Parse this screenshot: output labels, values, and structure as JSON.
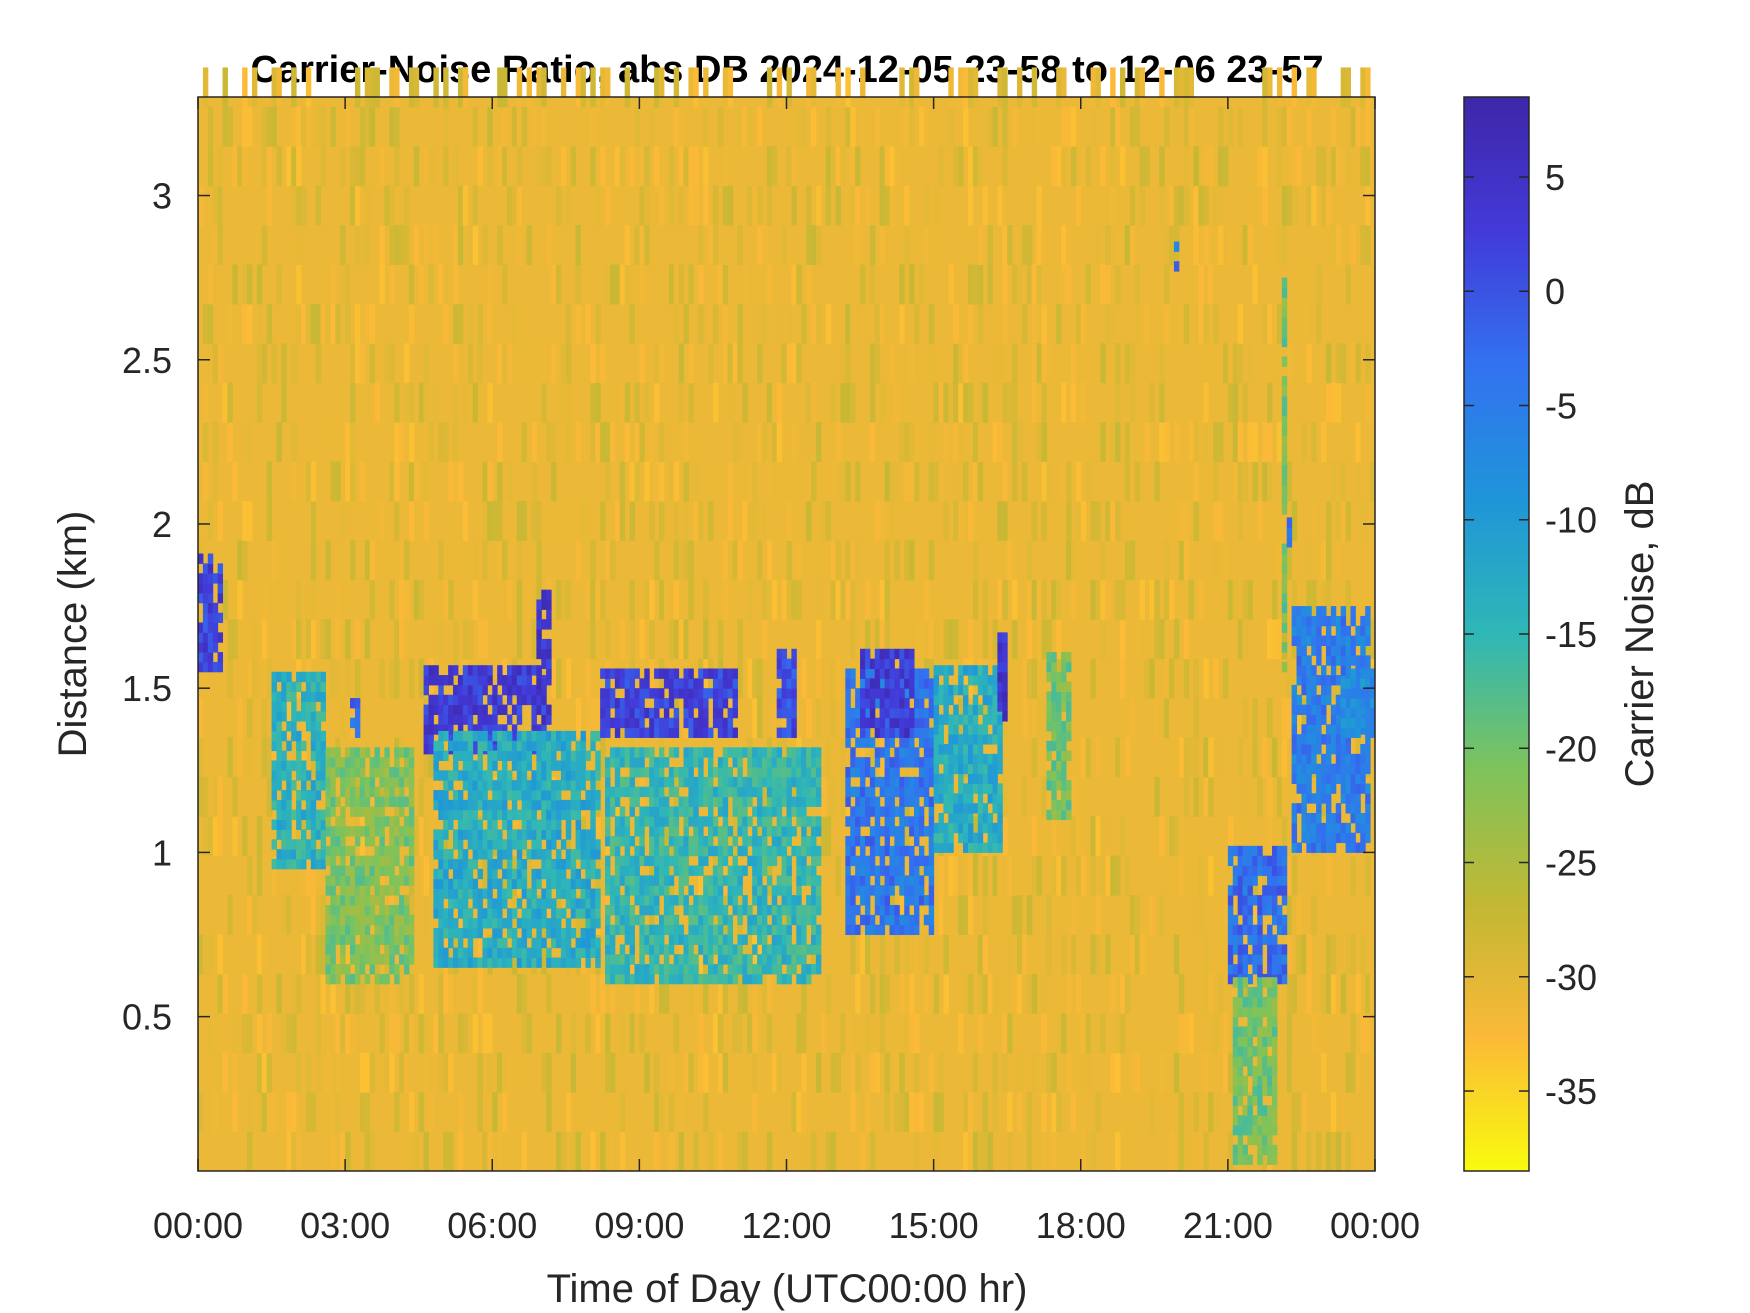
{
  "chart_data": {
    "type": "heatmap",
    "title": "Carrier-Noise Ratio, abs DB 2024-12-05 23-58 to 12-06 23-57",
    "xlabel": "Time of Day (UTC00:00 hr)",
    "ylabel": "Distance (km)",
    "colorbar_label": "Carrier Noise, dB",
    "x_range_hours": [
      0,
      24
    ],
    "y_range_km": [
      0.03,
      3.3
    ],
    "color_range_db": [
      -38.5,
      8.5
    ],
    "x_ticks": [
      {
        "value": 0,
        "label": "00:00"
      },
      {
        "value": 3,
        "label": "03:00"
      },
      {
        "value": 6,
        "label": "06:00"
      },
      {
        "value": 9,
        "label": "09:00"
      },
      {
        "value": 12,
        "label": "12:00"
      },
      {
        "value": 15,
        "label": "15:00"
      },
      {
        "value": 18,
        "label": "18:00"
      },
      {
        "value": 21,
        "label": "21:00"
      },
      {
        "value": 24,
        "label": "00:00"
      }
    ],
    "y_ticks": [
      {
        "value": 0.5,
        "label": "0.5"
      },
      {
        "value": 1,
        "label": "1"
      },
      {
        "value": 1.5,
        "label": "1.5"
      },
      {
        "value": 2,
        "label": "2"
      },
      {
        "value": 2.5,
        "label": "2.5"
      },
      {
        "value": 3,
        "label": "3"
      }
    ],
    "colorbar_ticks": [
      {
        "value": 5,
        "label": "5"
      },
      {
        "value": 0,
        "label": "0"
      },
      {
        "value": -5,
        "label": "-5"
      },
      {
        "value": -10,
        "label": "-10"
      },
      {
        "value": -15,
        "label": "-15"
      },
      {
        "value": -20,
        "label": "-20"
      },
      {
        "value": -25,
        "label": "-25"
      },
      {
        "value": -30,
        "label": "-30"
      },
      {
        "value": -35,
        "label": "-35"
      }
    ],
    "background_db": -31,
    "colormap": [
      "#f9fb0e",
      "#fbb938",
      "#c1b834",
      "#7dc35b",
      "#2fb7b6",
      "#1f95d9",
      "#3272f0",
      "#423ad8",
      "#3e26a8"
    ],
    "features": [
      {
        "t0": 0.0,
        "t1": 0.45,
        "d0": 1.55,
        "d1": 1.9,
        "db": 2
      },
      {
        "t0": 1.5,
        "t1": 2.6,
        "d0": 0.95,
        "d1": 1.55,
        "db": -14
      },
      {
        "t0": 2.6,
        "t1": 4.4,
        "d0": 0.6,
        "d1": 1.3,
        "db": -21
      },
      {
        "t0": 3.1,
        "t1": 3.3,
        "d0": 1.35,
        "d1": 1.45,
        "db": -3
      },
      {
        "t0": 4.6,
        "t1": 7.2,
        "d0": 1.3,
        "d1": 1.55,
        "db": 3
      },
      {
        "t0": 4.8,
        "t1": 8.2,
        "d0": 0.65,
        "d1": 1.35,
        "db": -13
      },
      {
        "t0": 6.9,
        "t1": 7.2,
        "d0": 1.5,
        "d1": 1.8,
        "db": 4
      },
      {
        "t0": 8.2,
        "t1": 11.0,
        "d0": 1.35,
        "d1": 1.55,
        "db": 2
      },
      {
        "t0": 8.3,
        "t1": 12.7,
        "d0": 0.6,
        "d1": 1.3,
        "db": -15
      },
      {
        "t0": 11.8,
        "t1": 12.2,
        "d0": 1.35,
        "d1": 1.6,
        "db": 1
      },
      {
        "t0": 13.2,
        "t1": 15.0,
        "d0": 0.75,
        "d1": 1.55,
        "db": -4
      },
      {
        "t0": 13.5,
        "t1": 14.6,
        "d0": 1.35,
        "d1": 1.6,
        "db": 3
      },
      {
        "t0": 15.0,
        "t1": 16.4,
        "d0": 1.0,
        "d1": 1.55,
        "db": -13
      },
      {
        "t0": 16.3,
        "t1": 16.5,
        "d0": 1.4,
        "d1": 1.65,
        "db": 4
      },
      {
        "t0": 17.3,
        "t1": 17.8,
        "d0": 1.1,
        "d1": 1.6,
        "db": -20
      },
      {
        "t0": 19.9,
        "t1": 20.0,
        "d0": 2.77,
        "d1": 2.9,
        "db": -3
      },
      {
        "t0": 21.0,
        "t1": 22.2,
        "d0": 0.6,
        "d1": 1.0,
        "db": -3
      },
      {
        "t0": 21.1,
        "t1": 22.0,
        "d0": 0.05,
        "d1": 0.6,
        "db": -20
      },
      {
        "t0": 22.1,
        "t1": 22.2,
        "d0": 1.55,
        "d1": 2.75,
        "db": -20
      },
      {
        "t0": 22.2,
        "t1": 22.3,
        "d0": 1.9,
        "d1": 2.05,
        "db": -1
      },
      {
        "t0": 22.3,
        "t1": 23.9,
        "d0": 1.0,
        "d1": 1.75,
        "db": -5
      },
      {
        "t0": 23.3,
        "t1": 24.0,
        "d0": 1.35,
        "d1": 1.55,
        "db": -8
      }
    ]
  }
}
